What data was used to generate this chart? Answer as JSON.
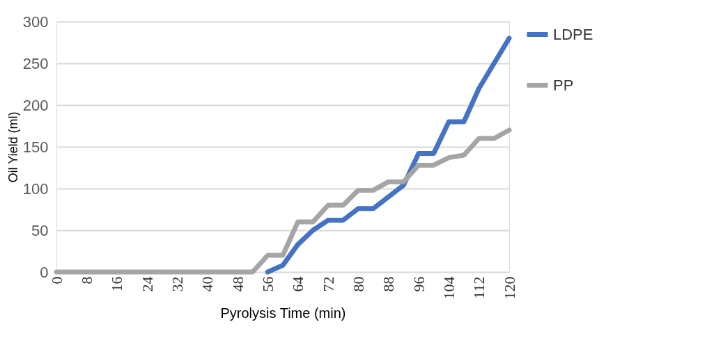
{
  "chart_data": {
    "type": "line",
    "xlabel": "Pyrolysis Time (min)",
    "ylabel": "Oil Yield (ml)",
    "x": [
      0,
      4,
      8,
      12,
      16,
      20,
      24,
      28,
      32,
      36,
      40,
      44,
      48,
      52,
      56,
      60,
      64,
      68,
      72,
      76,
      80,
      84,
      88,
      92,
      96,
      100,
      104,
      108,
      112,
      116,
      120
    ],
    "series": [
      {
        "name": "LDPE",
        "color": "#4472c4",
        "values": [
          null,
          null,
          null,
          null,
          null,
          null,
          null,
          null,
          null,
          null,
          null,
          null,
          null,
          null,
          0,
          8,
          33,
          50,
          62,
          62,
          76,
          76,
          90,
          104,
          142,
          142,
          180,
          180,
          220,
          250,
          280
        ]
      },
      {
        "name": "PP",
        "color": "#a5a5a5",
        "values": [
          0,
          0,
          0,
          0,
          0,
          0,
          0,
          0,
          0,
          0,
          0,
          0,
          0,
          0,
          20,
          20,
          60,
          60,
          80,
          80,
          98,
          98,
          108,
          108,
          128,
          128,
          137,
          140,
          160,
          160,
          170
        ]
      }
    ],
    "xlim": [
      0,
      120
    ],
    "xticks": [
      0,
      8,
      16,
      24,
      32,
      40,
      48,
      56,
      64,
      72,
      80,
      88,
      96,
      104,
      112,
      120
    ],
    "ylim": [
      0,
      300
    ],
    "yticks": [
      0,
      50,
      100,
      150,
      200,
      250,
      300
    ],
    "grid": "y",
    "legend": "right",
    "marker": "none",
    "line_style": "solid"
  }
}
